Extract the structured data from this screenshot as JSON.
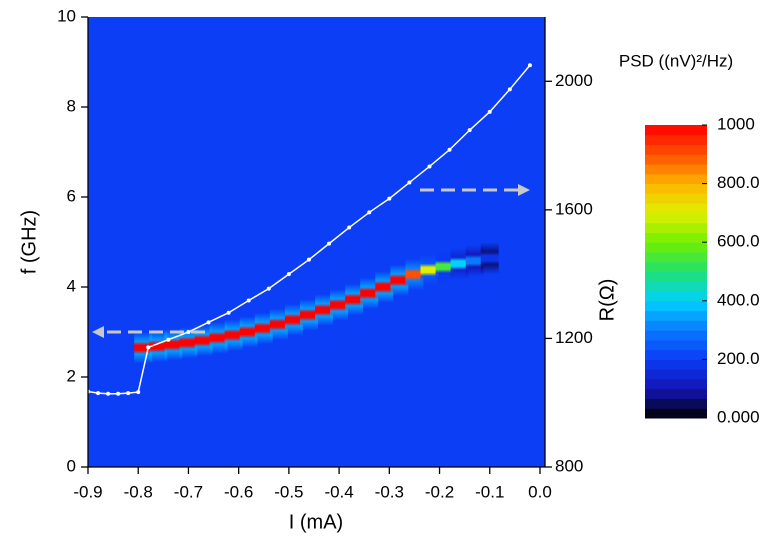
{
  "chart_data": {
    "type": "heatmap_line",
    "x_label": "I (mA)",
    "y_label": "f (GHz)",
    "y2_label": "R(Ω)",
    "colorbar_label": "PSD ((nV)²/Hz)",
    "xlim": [
      -0.9,
      0.01
    ],
    "xticks": [
      -0.9,
      -0.8,
      -0.7,
      -0.6,
      -0.5,
      -0.4,
      -0.3,
      -0.2,
      -0.1,
      {
        "value": 0,
        "label": "0.0"
      }
    ],
    "ylim": [
      0,
      10
    ],
    "yticks": [
      0,
      2,
      4,
      6,
      8,
      10
    ],
    "y2lim": [
      800,
      2200
    ],
    "y2ticks": [
      800,
      1200,
      1600,
      2000
    ],
    "zlim": [
      0,
      1000
    ],
    "zticks": [
      {
        "value": 0,
        "label": "0.000"
      },
      {
        "value": 200,
        "label": "200.0"
      },
      {
        "value": 400,
        "label": "400.0"
      },
      {
        "value": 600,
        "label": "600.0"
      },
      {
        "value": 800,
        "label": "800.0"
      },
      1000
    ],
    "colorscale": [
      "#000000",
      "#1414b4",
      "#0a3cf5",
      "#0a78ff",
      "#00d2ff",
      "#20e070",
      "#70f000",
      "#e0f000",
      "#ffb400",
      "#ff5000",
      "#ff0000"
    ],
    "plot_background": "#0b3ef5",
    "heatmap": {
      "x": [
        -0.79,
        -0.76,
        -0.73,
        -0.7,
        -0.67,
        -0.64,
        -0.61,
        -0.58,
        -0.55,
        -0.52,
        -0.49,
        -0.46,
        -0.43,
        -0.4,
        -0.37,
        -0.34,
        -0.31,
        -0.28,
        -0.25,
        -0.22,
        -0.19,
        -0.16,
        -0.13,
        -0.1
      ],
      "f": [
        2.65,
        2.68,
        2.72,
        2.76,
        2.81,
        2.87,
        2.93,
        3.0,
        3.08,
        3.17,
        3.27,
        3.38,
        3.49,
        3.6,
        3.72,
        3.86,
        4.0,
        4.15,
        4.28,
        4.38,
        4.45,
        4.52,
        4.58,
        4.64
      ],
      "z": [
        1000,
        1000,
        1000,
        1000,
        1000,
        1000,
        1000,
        1000,
        1000,
        1000,
        1000,
        1000,
        1000,
        1000,
        1000,
        1000,
        1000,
        1000,
        900,
        700,
        550,
        400,
        300,
        180
      ]
    },
    "series": [
      {
        "axis": "y2",
        "color": "#ffffff",
        "x": [
          -0.9,
          -0.88,
          -0.86,
          -0.84,
          -0.82,
          -0.8,
          -0.78,
          -0.74,
          -0.7,
          -0.66,
          -0.62,
          -0.58,
          -0.54,
          -0.5,
          -0.46,
          -0.42,
          -0.38,
          -0.34,
          -0.3,
          -0.26,
          -0.22,
          -0.18,
          -0.14,
          -0.1,
          -0.06,
          -0.02
        ],
        "values": [
          1035,
          1030,
          1028,
          1028,
          1030,
          1033,
          1172,
          1196,
          1220,
          1250,
          1280,
          1318,
          1355,
          1400,
          1445,
          1495,
          1545,
          1592,
          1635,
          1685,
          1735,
          1787,
          1848,
          1905,
          1975,
          2050
        ]
      }
    ]
  }
}
